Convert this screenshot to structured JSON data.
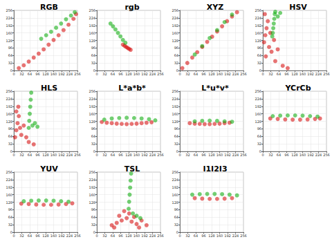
{
  "chart_data": [
    {
      "type": "scatter",
      "title": "RGB",
      "xlim": [
        0,
        256
      ],
      "ylim": [
        0,
        256
      ],
      "xticks": [
        0,
        32,
        64,
        96,
        128,
        160,
        192,
        224,
        256
      ],
      "yticks": [
        0,
        32,
        64,
        96,
        128,
        160,
        192,
        224,
        256
      ],
      "grid": true,
      "series": [
        {
          "color": "#d40000",
          "values": [
            [
              20,
              10
            ],
            [
              40,
              22
            ],
            [
              60,
              38
            ],
            [
              80,
              55
            ],
            [
              100,
              72
            ],
            [
              120,
              90
            ],
            [
              140,
              110
            ],
            [
              160,
              130
            ],
            [
              180,
              150
            ],
            [
              200,
              172
            ],
            [
              220,
              195
            ],
            [
              240,
              220
            ],
            [
              250,
              240
            ]
          ]
        },
        {
          "color": "#00a800",
          "values": [
            [
              110,
              135
            ],
            [
              130,
              150
            ],
            [
              150,
              165
            ],
            [
              170,
              182
            ],
            [
              190,
              200
            ],
            [
              210,
              218
            ],
            [
              230,
              234
            ],
            [
              245,
              248
            ]
          ]
        }
      ]
    },
    {
      "type": "scatter",
      "title": "rgb",
      "xlim": [
        0,
        256
      ],
      "ylim": [
        0,
        256
      ],
      "xticks": [
        0,
        32,
        64,
        96,
        128,
        160,
        192,
        224,
        256
      ],
      "yticks": [
        0,
        32,
        64,
        96,
        128,
        160,
        192,
        224,
        256
      ],
      "grid": true,
      "series": [
        {
          "color": "#d40000",
          "values": [
            [
              105,
              110
            ],
            [
              112,
              105
            ],
            [
              118,
              100
            ],
            [
              124,
              96
            ],
            [
              130,
              92
            ],
            [
              136,
              88
            ]
          ]
        },
        {
          "color": "#00a800",
          "values": [
            [
              55,
              200
            ],
            [
              65,
              188
            ],
            [
              75,
              175
            ],
            [
              85,
              160
            ],
            [
              95,
              145
            ],
            [
              105,
              130
            ],
            [
              115,
              118
            ]
          ]
        }
      ]
    },
    {
      "type": "scatter",
      "title": "XYZ",
      "xlim": [
        0,
        256
      ],
      "ylim": [
        0,
        256
      ],
      "xticks": [
        0,
        32,
        64,
        96,
        128,
        160,
        192,
        224,
        256
      ],
      "yticks": [
        0,
        32,
        64,
        96,
        128,
        160,
        192,
        224,
        256
      ],
      "grid": true,
      "series": [
        {
          "color": "#d40000",
          "values": [
            [
              10,
              10
            ],
            [
              30,
              32
            ],
            [
              50,
              55
            ],
            [
              70,
              78
            ],
            [
              90,
              100
            ],
            [
              110,
              122
            ],
            [
              130,
              144
            ],
            [
              150,
              166
            ],
            [
              170,
              188
            ],
            [
              190,
              210
            ],
            [
              210,
              230
            ],
            [
              230,
              248
            ]
          ]
        },
        {
          "color": "#00a800",
          "values": [
            [
              60,
              68
            ],
            [
              90,
              104
            ],
            [
              120,
              138
            ],
            [
              150,
              172
            ],
            [
              180,
              206
            ],
            [
              210,
              238
            ]
          ]
        }
      ]
    },
    {
      "type": "scatter",
      "title": "HSV",
      "xlim": [
        0,
        256
      ],
      "ylim": [
        0,
        256
      ],
      "xticks": [
        0,
        32,
        64,
        96,
        128,
        160,
        192,
        224,
        256
      ],
      "yticks": [
        0,
        32,
        64,
        96,
        128,
        160,
        192,
        224,
        256
      ],
      "grid": true,
      "series": [
        {
          "color": "#d40000",
          "values": [
            [
              5,
              120
            ],
            [
              10,
              150
            ],
            [
              15,
              180
            ],
            [
              20,
              210
            ],
            [
              8,
              240
            ],
            [
              25,
              100
            ],
            [
              35,
              80
            ],
            [
              45,
              130
            ],
            [
              60,
              90
            ],
            [
              12,
              60
            ],
            [
              30,
              160
            ],
            [
              50,
              40
            ],
            [
              80,
              20
            ],
            [
              100,
              10
            ]
          ]
        },
        {
          "color": "#00a800",
          "values": [
            [
              38,
              145
            ],
            [
              40,
              160
            ],
            [
              42,
              180
            ],
            [
              44,
              200
            ],
            [
              46,
              220
            ],
            [
              48,
              240
            ],
            [
              50,
              250
            ],
            [
              60,
              230
            ],
            [
              70,
              245
            ]
          ]
        }
      ]
    },
    {
      "type": "scatter",
      "title": "HLS",
      "xlim": [
        0,
        256
      ],
      "ylim": [
        0,
        256
      ],
      "xticks": [
        0,
        32,
        64,
        96,
        128,
        160,
        192,
        224,
        256
      ],
      "yticks": [
        0,
        32,
        64,
        96,
        128,
        160,
        192,
        224,
        256
      ],
      "grid": true,
      "series": [
        {
          "color": "#d40000",
          "values": [
            [
              5,
              60
            ],
            [
              10,
              90
            ],
            [
              15,
              120
            ],
            [
              20,
              150
            ],
            [
              25,
              100
            ],
            [
              30,
              70
            ],
            [
              40,
              110
            ],
            [
              50,
              60
            ],
            [
              60,
              40
            ],
            [
              80,
              30
            ],
            [
              10,
              170
            ],
            [
              18,
              190
            ]
          ]
        },
        {
          "color": "#00a800",
          "values": [
            [
              60,
              100
            ],
            [
              62,
              130
            ],
            [
              64,
              160
            ],
            [
              66,
              190
            ],
            [
              68,
              220
            ],
            [
              70,
              250
            ],
            [
              75,
              110
            ],
            [
              85,
              120
            ],
            [
              95,
              105
            ]
          ]
        }
      ]
    },
    {
      "type": "scatter",
      "title": "L*a*b*",
      "xlim": [
        0,
        256
      ],
      "ylim": [
        0,
        256
      ],
      "xticks": [
        0,
        32,
        64,
        96,
        128,
        160,
        192,
        224,
        256
      ],
      "yticks": [
        0,
        32,
        64,
        96,
        128,
        160,
        192,
        224,
        256
      ],
      "grid": true,
      "series": [
        {
          "color": "#d40000",
          "values": [
            [
              20,
              125
            ],
            [
              40,
              122
            ],
            [
              60,
              120
            ],
            [
              80,
              118
            ],
            [
              100,
              117
            ],
            [
              120,
              116
            ],
            [
              140,
              117
            ],
            [
              160,
              118
            ],
            [
              180,
              120
            ],
            [
              200,
              122
            ],
            [
              220,
              124
            ]
          ]
        },
        {
          "color": "#00a800",
          "values": [
            [
              30,
              135
            ],
            [
              60,
              140
            ],
            [
              90,
              142
            ],
            [
              120,
              143
            ],
            [
              150,
              142
            ],
            [
              180,
              140
            ],
            [
              210,
              137
            ],
            [
              235,
              132
            ]
          ]
        }
      ]
    },
    {
      "type": "scatter",
      "title": "L*u*v*",
      "xlim": [
        0,
        256
      ],
      "ylim": [
        0,
        256
      ],
      "xticks": [
        0,
        32,
        64,
        96,
        128,
        160,
        192,
        224,
        256
      ],
      "yticks": [
        0,
        32,
        64,
        96,
        128,
        160,
        192,
        224,
        256
      ],
      "grid": true,
      "series": [
        {
          "color": "#d40000",
          "values": [
            [
              40,
              120
            ],
            [
              60,
              118
            ],
            [
              80,
              117
            ],
            [
              100,
              116
            ],
            [
              120,
              116
            ],
            [
              140,
              117
            ],
            [
              160,
              118
            ],
            [
              180,
              120
            ],
            [
              200,
              122
            ]
          ]
        },
        {
          "color": "#00a800",
          "values": [
            [
              60,
              128
            ],
            [
              90,
              130
            ],
            [
              120,
              131
            ],
            [
              150,
              130
            ],
            [
              180,
              128
            ],
            [
              210,
              126
            ]
          ]
        }
      ]
    },
    {
      "type": "scatter",
      "title": "YCrCb",
      "xlim": [
        0,
        256
      ],
      "ylim": [
        0,
        256
      ],
      "xticks": [
        0,
        32,
        64,
        96,
        128,
        160,
        192,
        224,
        256
      ],
      "yticks": [
        0,
        32,
        64,
        96,
        128,
        160,
        192,
        224,
        256
      ],
      "grid": true,
      "series": [
        {
          "color": "#d40000",
          "values": [
            [
              30,
              140
            ],
            [
              60,
              138
            ],
            [
              90,
              136
            ],
            [
              120,
              135
            ],
            [
              150,
              135
            ],
            [
              180,
              136
            ],
            [
              210,
              138
            ],
            [
              230,
              140
            ]
          ]
        },
        {
          "color": "#00a800",
          "values": [
            [
              40,
              150
            ],
            [
              70,
              152
            ],
            [
              100,
              153
            ],
            [
              130,
              153
            ],
            [
              160,
              152
            ],
            [
              190,
              150
            ],
            [
              220,
              148
            ]
          ]
        }
      ]
    },
    {
      "type": "scatter",
      "title": "YUV",
      "xlim": [
        0,
        256
      ],
      "ylim": [
        0,
        256
      ],
      "xticks": [
        0,
        32,
        64,
        96,
        128,
        160,
        192,
        224,
        256
      ],
      "yticks": [
        0,
        32,
        64,
        96,
        128,
        160,
        192,
        224,
        256
      ],
      "grid": true,
      "series": [
        {
          "color": "#d40000",
          "values": [
            [
              30,
              122
            ],
            [
              60,
              120
            ],
            [
              90,
              118
            ],
            [
              120,
              117
            ],
            [
              150,
              117
            ],
            [
              180,
              118
            ],
            [
              210,
              120
            ],
            [
              235,
              123
            ]
          ]
        },
        {
          "color": "#00a800",
          "values": [
            [
              40,
              132
            ],
            [
              70,
              134
            ],
            [
              100,
              135
            ],
            [
              130,
              135
            ],
            [
              160,
              134
            ],
            [
              190,
              132
            ],
            [
              220,
              130
            ]
          ]
        }
      ]
    },
    {
      "type": "scatter",
      "title": "TSL",
      "xlim": [
        0,
        256
      ],
      "ylim": [
        0,
        256
      ],
      "xticks": [
        0,
        32,
        64,
        96,
        128,
        160,
        192,
        224,
        256
      ],
      "yticks": [
        0,
        32,
        64,
        96,
        128,
        160,
        192,
        224,
        256
      ],
      "grid": true,
      "series": [
        {
          "color": "#d40000",
          "values": [
            [
              60,
              30
            ],
            [
              80,
              40
            ],
            [
              100,
              50
            ],
            [
              120,
              60
            ],
            [
              140,
              45
            ],
            [
              160,
              35
            ],
            [
              180,
              50
            ],
            [
              200,
              30
            ],
            [
              90,
              70
            ],
            [
              110,
              90
            ],
            [
              70,
              20
            ],
            [
              130,
              80
            ],
            [
              150,
              65
            ],
            [
              170,
              20
            ]
          ]
        },
        {
          "color": "#00a800",
          "values": [
            [
              128,
              100
            ],
            [
              130,
              130
            ],
            [
              132,
              160
            ],
            [
              134,
              190
            ],
            [
              136,
              220
            ],
            [
              138,
              250
            ],
            [
              145,
              80
            ],
            [
              160,
              70
            ],
            [
              175,
              60
            ]
          ]
        }
      ]
    },
    {
      "type": "scatter",
      "title": "I1I2I3",
      "xlim": [
        0,
        256
      ],
      "ylim": [
        0,
        256
      ],
      "xticks": [
        0,
        32,
        64,
        96,
        128,
        160,
        192,
        224,
        256
      ],
      "yticks": [
        0,
        32,
        64,
        96,
        128,
        160,
        192,
        224,
        256
      ],
      "grid": true,
      "series": [
        {
          "color": "#d40000",
          "values": [
            [
              60,
              145
            ],
            [
              90,
              143
            ],
            [
              120,
              142
            ],
            [
              150,
              142
            ],
            [
              180,
              143
            ],
            [
              210,
              145
            ]
          ]
        },
        {
          "color": "#00a800",
          "values": [
            [
              50,
              160
            ],
            [
              80,
              162
            ],
            [
              110,
              163
            ],
            [
              140,
              163
            ],
            [
              170,
              162
            ],
            [
              200,
              160
            ],
            [
              230,
              157
            ]
          ]
        }
      ]
    }
  ]
}
